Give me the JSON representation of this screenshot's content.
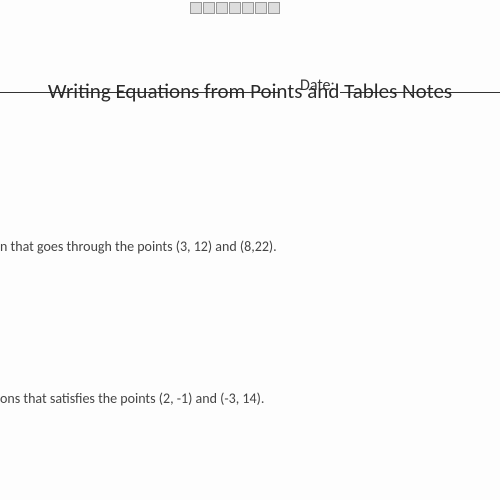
{
  "header": {
    "date_label": "Date:"
  },
  "title": "Writing Equations from Points and Tables Notes",
  "problems": {
    "p1_fragment": "n that goes through the points (3, 12) and (8,22).",
    "p2_fragment": "ons that satisfies the points (2, -1) and (-3, 14)."
  },
  "colors": {
    "background": "#fdfdfd",
    "text": "#333333",
    "body_text": "#444444"
  },
  "typography": {
    "title_fontsize": 21,
    "body_fontsize": 14,
    "date_fontsize": 16
  }
}
